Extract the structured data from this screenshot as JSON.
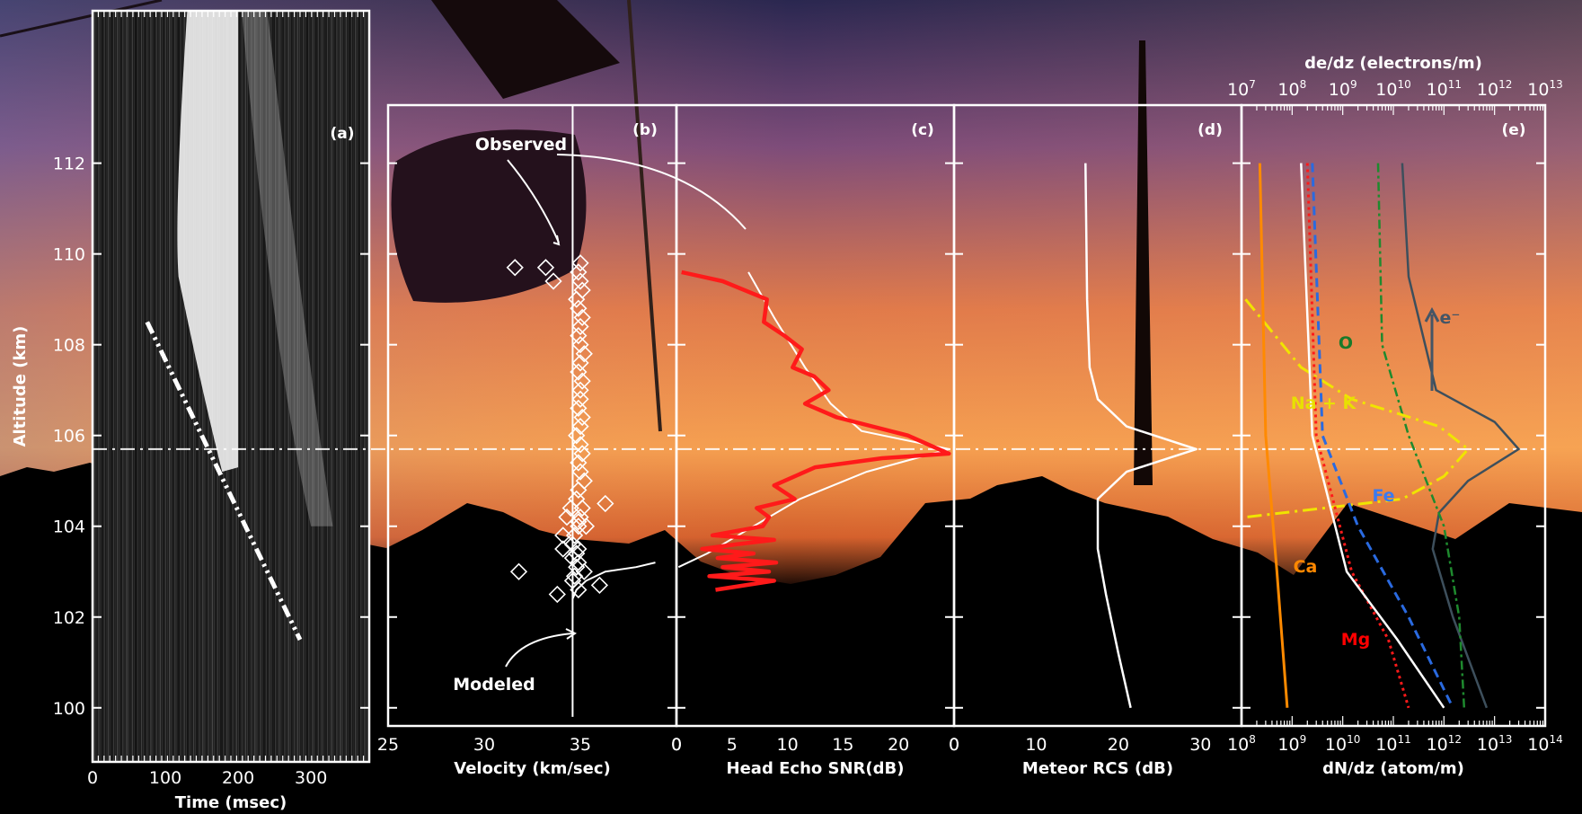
{
  "chart_data": [
    {
      "panel": "a",
      "type": "heatmap",
      "tag": "(a)",
      "xlabel": "Time (msec)",
      "ylabel": "Altitude (km)",
      "xlim": [
        0,
        380
      ],
      "ylim": [
        99.6,
        113.2
      ],
      "xticks": [
        "0",
        "100",
        "200",
        "300"
      ],
      "yticks": [
        "100",
        "102",
        "104",
        "106",
        "108",
        "110",
        "112"
      ],
      "fit_line": {
        "x": [
          75,
          285
        ],
        "y": [
          108.5,
          101.5
        ]
      }
    },
    {
      "panel": "b",
      "type": "scatter",
      "tag": "(b)",
      "xlabel": "Velocity (km/sec)",
      "xlim": [
        25,
        40
      ],
      "xticks": [
        "25",
        "30",
        "35",
        "0"
      ],
      "annotations": [
        "Observed",
        "Modeled"
      ],
      "series": [
        {
          "name": "Observed",
          "x": [
            31.6,
            33.2,
            33.6,
            35.0,
            34.9,
            35.0,
            35.1,
            34.8,
            34.9,
            35.1,
            35.0,
            34.9,
            35.0,
            35.2,
            35.0,
            34.9,
            35.1,
            35.0,
            35.0,
            34.9,
            35.1,
            35.0,
            34.8,
            35.0,
            35.1,
            34.9,
            35.0,
            35.2,
            34.9,
            34.8,
            35.1,
            35.0,
            34.9,
            34.7,
            34.6,
            34.9,
            34.8,
            34.6,
            34.9,
            34.8,
            35.2,
            34.7,
            36.0,
            34.6,
            34.9,
            36.3,
            34.5,
            34.3,
            34.9,
            34.1,
            31.8,
            34.1,
            35.3,
            33.8
          ],
          "y": [
            109.7,
            109.7,
            109.4,
            109.8,
            109.6,
            109.4,
            109.2,
            109.0,
            108.8,
            108.6,
            108.4,
            108.2,
            108.0,
            107.8,
            107.6,
            107.4,
            107.2,
            107.0,
            106.8,
            106.6,
            106.4,
            106.2,
            106.0,
            105.8,
            105.6,
            105.4,
            105.2,
            105.0,
            104.8,
            104.6,
            104.4,
            104.2,
            104.0,
            103.8,
            103.6,
            103.5,
            103.4,
            103.3,
            103.2,
            103.1,
            103.0,
            102.9,
            102.7,
            102.8,
            102.6,
            104.5,
            104.4,
            104.2,
            104.1,
            103.5,
            103.0,
            103.8,
            104.0,
            102.5
          ]
        },
        {
          "name": "Modeled",
          "x": [
            34.6,
            34.6,
            34.6,
            34.6,
            34.6,
            34.6,
            34.6,
            34.6,
            34.8,
            35.3,
            36.3,
            37.9,
            38.9
          ],
          "y": [
            99.8,
            100.5,
            101.2,
            101.5,
            101.8,
            102.0,
            102.2,
            102.4,
            102.6,
            102.8,
            103.0,
            103.1,
            103.2
          ]
        }
      ]
    },
    {
      "panel": "c",
      "type": "line",
      "tag": "(c)",
      "xlabel": "Head Echo SNR(dB)",
      "xlim": [
        0,
        27
      ],
      "xticks": [
        "0",
        "5",
        "10",
        "15",
        "20",
        "0"
      ],
      "series": [
        {
          "name": "Observed",
          "x": [
            0.5,
            4.5,
            8.8,
            8.5,
            10.5,
            12.2,
            11.3,
            13.4,
            14.8,
            12.5,
            15.6,
            22.5,
            26.5,
            20.0,
            13.5,
            9.5,
            11.5,
            7.8,
            9.0,
            8.4,
            3.5,
            9.5,
            5.8,
            2.5,
            7.5,
            4.0,
            9.7,
            4.5,
            9.0,
            3.2,
            9.5,
            3.8
          ],
          "y": [
            109.6,
            109.4,
            109.0,
            108.5,
            108.2,
            107.9,
            107.5,
            107.3,
            107.0,
            106.7,
            106.4,
            106.0,
            105.6,
            105.5,
            105.3,
            104.9,
            104.6,
            104.4,
            104.2,
            104.0,
            103.8,
            103.7,
            103.6,
            103.5,
            103.4,
            103.3,
            103.2,
            103.1,
            103.0,
            102.9,
            102.8,
            102.6
          ]
        },
        {
          "name": "Modeled",
          "x": [
            7.0,
            9.5,
            12.5,
            15.0,
            18.0,
            26.5,
            18.5,
            12.0,
            7.5,
            3.0,
            0.2
          ],
          "y": [
            109.6,
            108.6,
            107.5,
            106.7,
            106.1,
            105.7,
            105.2,
            104.6,
            104.0,
            103.4,
            103.1
          ]
        }
      ]
    },
    {
      "panel": "d",
      "type": "line",
      "tag": "(d)",
      "xlabel": "Meteor RCS (dB)",
      "xlim": [
        0,
        35
      ],
      "xticks": [
        "0",
        "10",
        "20",
        "30"
      ],
      "series": [
        {
          "name": "",
          "x": [
            16.0,
            16.2,
            16.5,
            17.5,
            21.0,
            29.5,
            21.0,
            17.5,
            17.5,
            18.5,
            20.0,
            21.5
          ],
          "y": [
            112.0,
            109.0,
            107.5,
            106.8,
            106.2,
            105.7,
            105.2,
            104.6,
            103.5,
            102.5,
            101.2,
            100.0
          ]
        }
      ]
    },
    {
      "panel": "e",
      "type": "line",
      "tag": "(e)",
      "xlabel": "dN/dz (atom/m)",
      "x2label": "de/dz (electrons/m)",
      "xscale": "log",
      "xlim": [
        100000000,
        100000000000000
      ],
      "x2lim": [
        10000000,
        10000000000000
      ],
      "xticks": [
        "10^8",
        "10^9",
        "10^10",
        "10^11",
        "10^12",
        "10^13",
        "10^14"
      ],
      "x2ticks": [
        "10^7",
        "10^8",
        "10^9",
        "10^10",
        "10^11",
        "10^12",
        "10^13"
      ],
      "labels": [
        "O",
        "Na + K",
        "Fe",
        "Ca",
        "Mg",
        "e⁻"
      ],
      "colors": {
        "O": "#1a7a2a",
        "Na + K": "#e8e000",
        "Fe": "#2266dd",
        "Ca": "#ff8800",
        "Mg": "#ff0000",
        "e": "#445566",
        "total": "#ffffff"
      },
      "series": [
        {
          "name": "e",
          "x": [
            150000000000,
            200000000000,
            700000000000,
            10000000000000,
            30000000000000,
            3000000000000,
            800000000000,
            600000000000,
            1500000000000,
            7000000000000
          ],
          "y": [
            112,
            109.5,
            107,
            106.3,
            105.7,
            105.0,
            104.3,
            103.5,
            102.0,
            100.0
          ]
        },
        {
          "name": "O",
          "x": [
            50000000000,
            60000000000,
            200000000000,
            1000000000000,
            2000000000000,
            2500000000000
          ],
          "y": [
            112,
            108,
            106,
            104,
            102,
            100
          ]
        },
        {
          "name": "Na + K",
          "x": [
            120000000,
            1500000000,
            15000000000,
            800000000000,
            3000000000000,
            1000000000000,
            150000000000,
            120000000
          ],
          "y": [
            109.0,
            107.5,
            106.8,
            106.2,
            105.7,
            105.1,
            104.6,
            104.2
          ]
        },
        {
          "name": "Fe",
          "x": [
            2500000000,
            4000000000,
            20000000000,
            200000000000,
            1500000000000
          ],
          "y": [
            112,
            106,
            104,
            102,
            100
          ]
        },
        {
          "name": "Ca",
          "x": [
            230000000,
            300000000,
            500000000,
            800000000
          ],
          "y": [
            112,
            106,
            103,
            100
          ]
        },
        {
          "name": "Mg",
          "x": [
            2000000000,
            3000000000,
            15000000000,
            80000000000,
            200000000000
          ],
          "y": [
            112,
            106,
            103,
            101.5,
            100
          ]
        },
        {
          "name": "total",
          "x": [
            1500000000,
            2500000000,
            12000000000,
            120000000000,
            1000000000000
          ],
          "y": [
            112,
            106,
            103,
            101.5,
            100
          ]
        }
      ]
    }
  ],
  "shared": {
    "ylabel": "Altitude (km)",
    "ylim": [
      99.6,
      113.2
    ],
    "reference_altitude": 105.7
  }
}
